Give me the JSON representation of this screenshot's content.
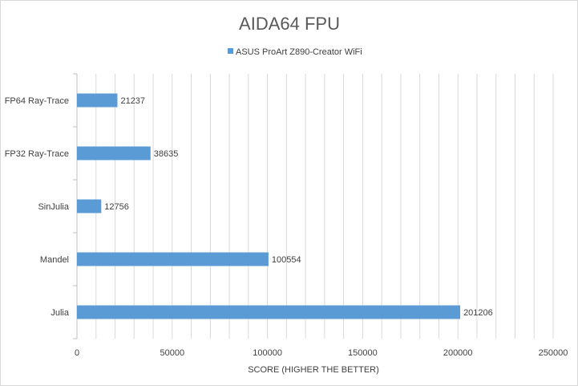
{
  "chart_data": {
    "type": "bar",
    "orientation": "horizontal",
    "title": "AIDA64 FPU",
    "xlabel": "SCORE (HIGHER THE BETTER)",
    "ylabel": "",
    "categories": [
      "FP64 Ray-Trace",
      "FP32 Ray-Trace",
      "SinJulia",
      "Mandel",
      "Julia"
    ],
    "series": [
      {
        "name": "ASUS ProArt Z890-Creator WiFi",
        "values": [
          21237,
          38635,
          12756,
          100554,
          201206
        ],
        "color": "#5b9bd5"
      }
    ],
    "xlim": [
      0,
      250000
    ],
    "xticks": [
      0,
      50000,
      100000,
      150000,
      200000,
      250000
    ],
    "xtick_labels": [
      "0",
      "50000",
      "100000",
      "150000",
      "200000",
      "250000"
    ],
    "data_labels": [
      "21237",
      "38635",
      "12756",
      "100554",
      "201206"
    ],
    "grid": true,
    "legend_position": "top"
  }
}
